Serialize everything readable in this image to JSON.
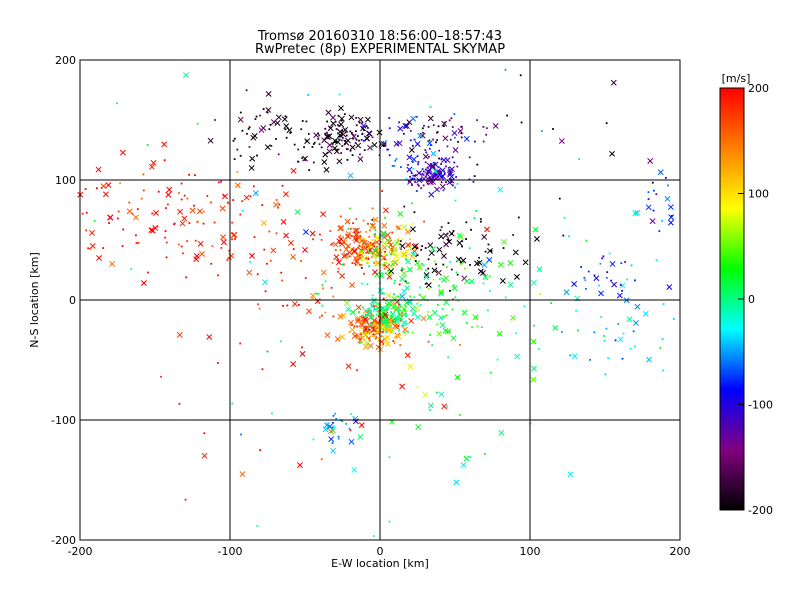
{
  "chart_data": {
    "type": "scatter",
    "title": "Tromsø 20160310 18:56:00–18:57:43",
    "subtitle": "RwPretec (8p) EXPERIMENTAL SKYMAP",
    "xlabel": "E-W location [km]",
    "ylabel": "N-S location [km]",
    "xlim": [
      -200,
      200
    ],
    "ylim": [
      -200,
      200
    ],
    "xticks": [
      -200,
      -100,
      0,
      100,
      200
    ],
    "yticks": [
      -200,
      -100,
      0,
      100,
      200
    ],
    "xtick_labels": [
      "-200",
      "-100",
      "0",
      "100",
      "200"
    ],
    "ytick_labels": [
      "-200",
      "-100",
      "0",
      "100",
      "200"
    ],
    "grid": true,
    "markers": [
      "dot",
      "x"
    ],
    "colorbar": {
      "label": "[m/s]",
      "range": [
        -200,
        200
      ],
      "ticks": [
        200,
        100,
        0,
        -100,
        -200
      ],
      "tick_labels": [
        "200",
        "100",
        "0",
        "-100",
        "-200"
      ],
      "colormap": [
        "#000000",
        "#800080",
        "#0000ff",
        "#00ffff",
        "#00ff00",
        "#ffff00",
        "#ff8000",
        "#ff0000"
      ]
    },
    "clusters": [
      {
        "x": -10,
        "y": 45,
        "sx": 14,
        "sy": 10,
        "v": 170,
        "n": 160
      },
      {
        "x": 5,
        "y": 42,
        "sx": 10,
        "sy": 8,
        "v": 80,
        "n": 70
      },
      {
        "x": -5,
        "y": -20,
        "sx": 10,
        "sy": 8,
        "v": 160,
        "n": 150
      },
      {
        "x": 5,
        "y": -12,
        "sx": 10,
        "sy": 8,
        "v": 0,
        "n": 110
      },
      {
        "x": 0,
        "y": -28,
        "sx": 8,
        "sy": 6,
        "v": 110,
        "n": 50
      },
      {
        "x": 35,
        "y": 105,
        "sx": 10,
        "sy": 8,
        "v": -110,
        "n": 120
      },
      {
        "x": -25,
        "y": 135,
        "sx": 14,
        "sy": 10,
        "v": -185,
        "n": 130
      },
      {
        "x": 45,
        "y": 140,
        "sx": 14,
        "sy": 8,
        "v": -160,
        "n": 40
      },
      {
        "x": -80,
        "y": 140,
        "sx": 15,
        "sy": 15,
        "v": -190,
        "n": 50
      },
      {
        "x": -130,
        "y": 70,
        "sx": 45,
        "sy": 25,
        "v": 190,
        "n": 150
      },
      {
        "x": 45,
        "y": 40,
        "sx": 20,
        "sy": 15,
        "v": -200,
        "n": 70
      },
      {
        "x": 30,
        "y": 15,
        "sx": 25,
        "sy": 25,
        "v": 20,
        "n": 110
      },
      {
        "x": 160,
        "y": -30,
        "sx": 25,
        "sy": 15,
        "v": -40,
        "n": 40
      },
      {
        "x": 150,
        "y": 20,
        "sx": 12,
        "sy": 8,
        "v": -80,
        "n": 25
      },
      {
        "x": -30,
        "y": -105,
        "sx": 8,
        "sy": 8,
        "v": -50,
        "n": 25
      },
      {
        "x": 185,
        "y": 80,
        "sx": 10,
        "sy": 25,
        "v": -70,
        "n": 25
      },
      {
        "x": 20,
        "y": 130,
        "sx": 20,
        "sy": 10,
        "v": -80,
        "n": 40
      },
      {
        "x": -40,
        "y": 20,
        "sx": 40,
        "sy": 30,
        "v": 180,
        "n": 60
      },
      {
        "x": 60,
        "y": -30,
        "sx": 40,
        "sy": 40,
        "v": 30,
        "n": 40
      },
      {
        "x": -60,
        "y": -60,
        "sx": 60,
        "sy": 50,
        "v": 190,
        "n": 30
      },
      {
        "x": 0,
        "y": 0,
        "sx": 110,
        "sy": 110,
        "v": -20,
        "n": 90
      },
      {
        "x": 100,
        "y": 110,
        "sx": 60,
        "sy": 40,
        "v": -200,
        "n": 30
      }
    ]
  }
}
